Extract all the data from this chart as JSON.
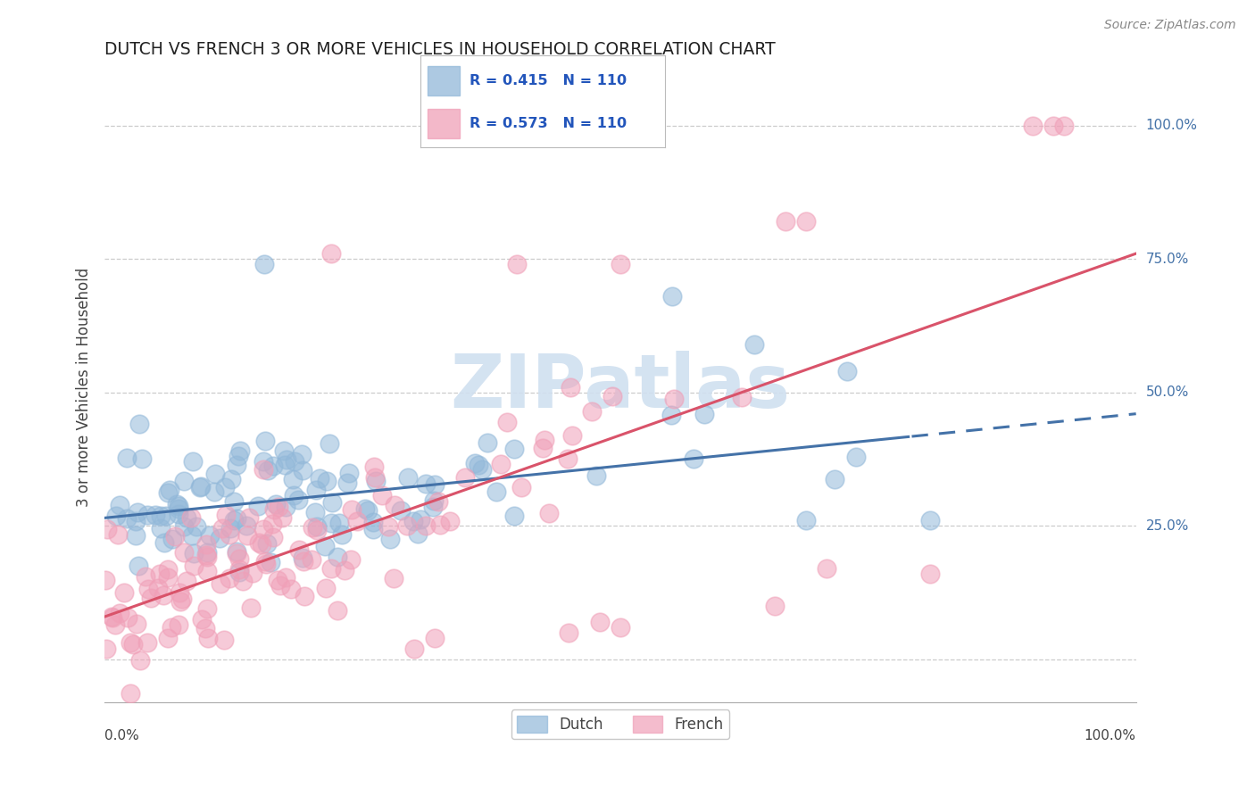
{
  "title": "DUTCH VS FRENCH 3 OR MORE VEHICLES IN HOUSEHOLD CORRELATION CHART",
  "source": "Source: ZipAtlas.com",
  "ylabel": "3 or more Vehicles in Household",
  "xlim": [
    0.0,
    1.0
  ],
  "ylim": [
    -0.08,
    1.1
  ],
  "dutch_R": 0.415,
  "dutch_N": 110,
  "french_R": 0.573,
  "french_N": 110,
  "dutch_color": "#92b8d9",
  "french_color": "#f0a0b8",
  "dutch_line_color": "#4472a8",
  "french_line_color": "#d9536a",
  "watermark_color": "#d0e0f0",
  "background_color": "#ffffff",
  "grid_color": "#cccccc",
  "title_color": "#222222",
  "axis_label_color": "#444444",
  "right_tick_color": "#4472a8",
  "legend_text_color": "#2255bb",
  "dutch_line_intercept": 0.265,
  "dutch_line_slope": 0.195,
  "dutch_line_solid_end": 0.78,
  "french_line_intercept": 0.08,
  "french_line_slope": 0.68
}
